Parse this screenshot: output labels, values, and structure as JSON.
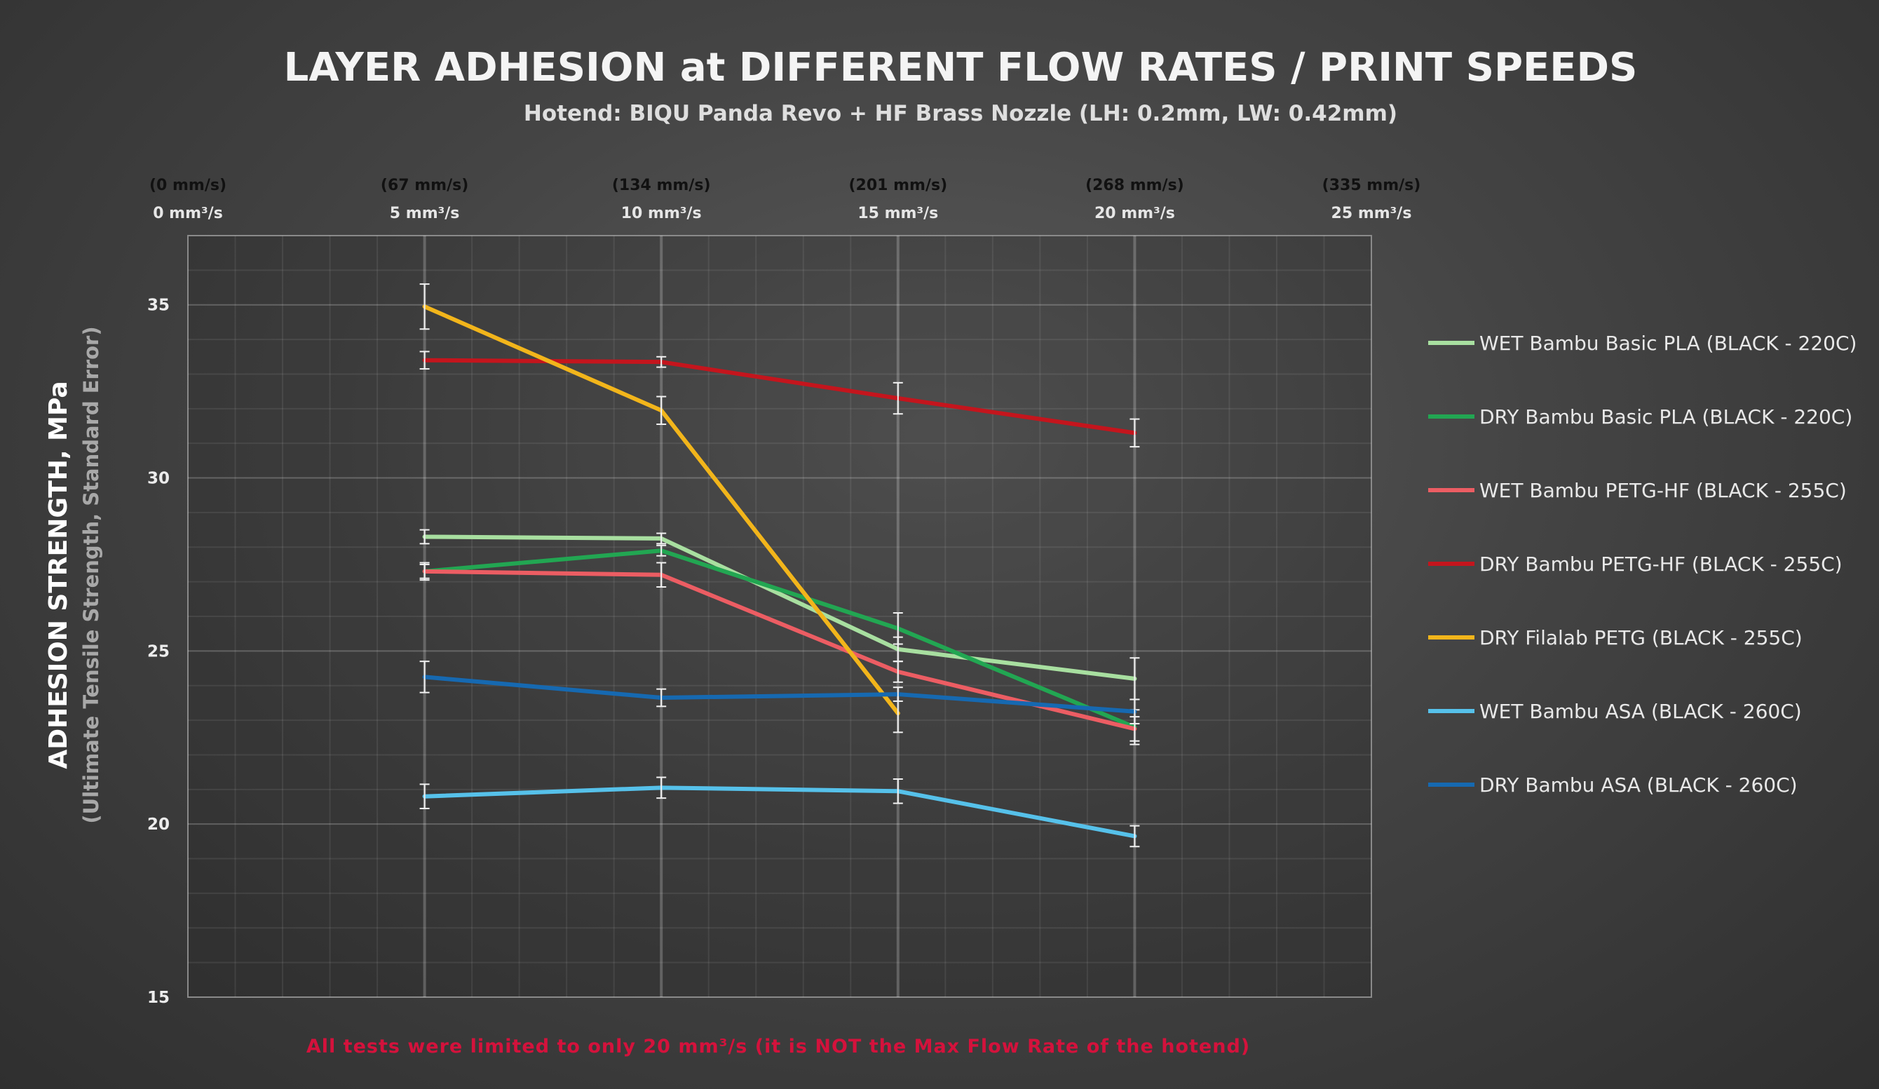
{
  "chart_data": {
    "type": "line",
    "title": "LAYER ADHESION at DIFFERENT FLOW RATES / PRINT SPEEDS",
    "subtitle": "Hotend: BIQU Panda Revo + HF Brass Nozzle (LH: 0.2mm, LW: 0.42mm)",
    "ylabel": "ADHESION STRENGTH, MPa",
    "ysublabel": "(Ultimate Tensile Strength, Standard Error)",
    "xlim": [
      0,
      25
    ],
    "ylim": [
      15,
      37
    ],
    "grid": true,
    "legend_position": "right",
    "x_ticks": [
      {
        "value": 0,
        "speed": "(0 mm/s)",
        "flow": "0 mm³/s"
      },
      {
        "value": 5,
        "speed": "(67 mm/s)",
        "flow": "5 mm³/s"
      },
      {
        "value": 10,
        "speed": "(134 mm/s)",
        "flow": "10 mm³/s"
      },
      {
        "value": 15,
        "speed": "(201 mm/s)",
        "flow": "15 mm³/s"
      },
      {
        "value": 20,
        "speed": "(268 mm/s)",
        "flow": "20 mm³/s"
      },
      {
        "value": 25,
        "speed": "(335 mm/s)",
        "flow": "25 mm³/s"
      }
    ],
    "y_ticks": [
      {
        "value": 15,
        "label": "15"
      },
      {
        "value": 20,
        "label": "20"
      },
      {
        "value": 25,
        "label": "25"
      },
      {
        "value": 30,
        "label": "30"
      },
      {
        "value": 35,
        "label": "35"
      }
    ],
    "x": [
      5,
      10,
      15,
      20
    ],
    "series": [
      {
        "name": "WET Bambu Basic PLA (BLACK - 220C)",
        "color": "#a8dfa0",
        "values": [
          28.3,
          28.25,
          25.05,
          24.2
        ],
        "errors": [
          0.2,
          0.15,
          0.35,
          0.6
        ]
      },
      {
        "name": "DRY Bambu  Basic PLA (BLACK - 220C)",
        "color": "#22a652",
        "values": [
          27.3,
          27.9,
          25.65,
          22.8
        ],
        "errors": [
          0.2,
          0.15,
          0.45,
          0.5
        ]
      },
      {
        "name": "WET Bambu PETG-HF (BLACK - 255C)",
        "color": "#ec5d63",
        "values": [
          27.3,
          27.2,
          24.4,
          22.75
        ],
        "errors": [
          0.25,
          0.35,
          0.3,
          0.35
        ]
      },
      {
        "name": "DRY Bambu PETG-HF (BLACK - 255C)",
        "color": "#c4151d",
        "values": [
          33.4,
          33.35,
          32.3,
          31.3
        ],
        "errors": [
          0.25,
          0.15,
          0.45,
          0.4
        ]
      },
      {
        "name": "DRY Filalab PETG (BLACK - 255C)",
        "color": "#f2b51b",
        "values": [
          34.95,
          31.95,
          23.2,
          null
        ],
        "errors": [
          0.65,
          0.4,
          0.55,
          null
        ]
      },
      {
        "name": "WET Bambu ASA (BLACK - 260C)",
        "color": "#56c1ea",
        "values": [
          20.8,
          21.05,
          20.95,
          19.65
        ],
        "errors": [
          0.35,
          0.3,
          0.35,
          0.3
        ]
      },
      {
        "name": "DRY Bambu ASA (BLACK - 260C)",
        "color": "#1669b1",
        "values": [
          24.25,
          23.65,
          23.75,
          23.25
        ],
        "errors": [
          0.45,
          0.25,
          0.2,
          0.35
        ]
      }
    ],
    "annotation": "All tests were limited to only 20 mm³/s (it is NOT the Max Flow Rate of the hotend)"
  }
}
